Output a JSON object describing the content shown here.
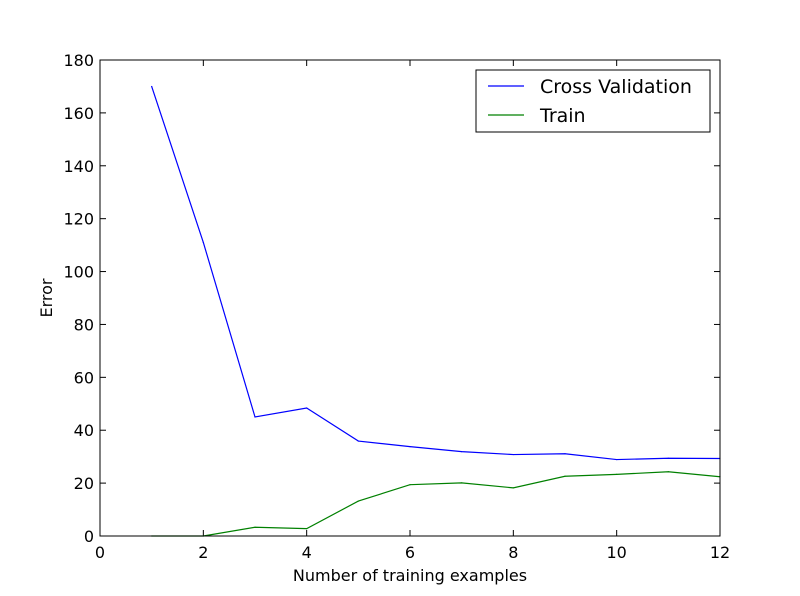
{
  "chart_data": {
    "type": "line",
    "xlabel": "Number of training examples",
    "ylabel": "Error",
    "xlim": [
      0,
      12
    ],
    "ylim": [
      0,
      180
    ],
    "xticks": [
      "0",
      "2",
      "4",
      "6",
      "8",
      "10",
      "12"
    ],
    "yticks": [
      "0",
      "20",
      "40",
      "60",
      "80",
      "100",
      "120",
      "140",
      "160",
      "180"
    ],
    "grid": false,
    "legend_position": "top-right",
    "x": [
      1,
      2,
      3,
      4,
      5,
      6,
      7,
      8,
      9,
      10,
      11,
      12
    ],
    "series": [
      {
        "name": "Cross Validation",
        "color": "#0000ff",
        "values": [
          170,
          111,
          45,
          48.4,
          35.9,
          33.8,
          31.9,
          30.8,
          31.1,
          28.9,
          29.4,
          29.3
        ]
      },
      {
        "name": "Train",
        "color": "#008000",
        "values": [
          0,
          0,
          3.3,
          2.8,
          13.2,
          19.4,
          20.1,
          18.2,
          22.6,
          23.3,
          24.3,
          22.4
        ]
      }
    ]
  }
}
